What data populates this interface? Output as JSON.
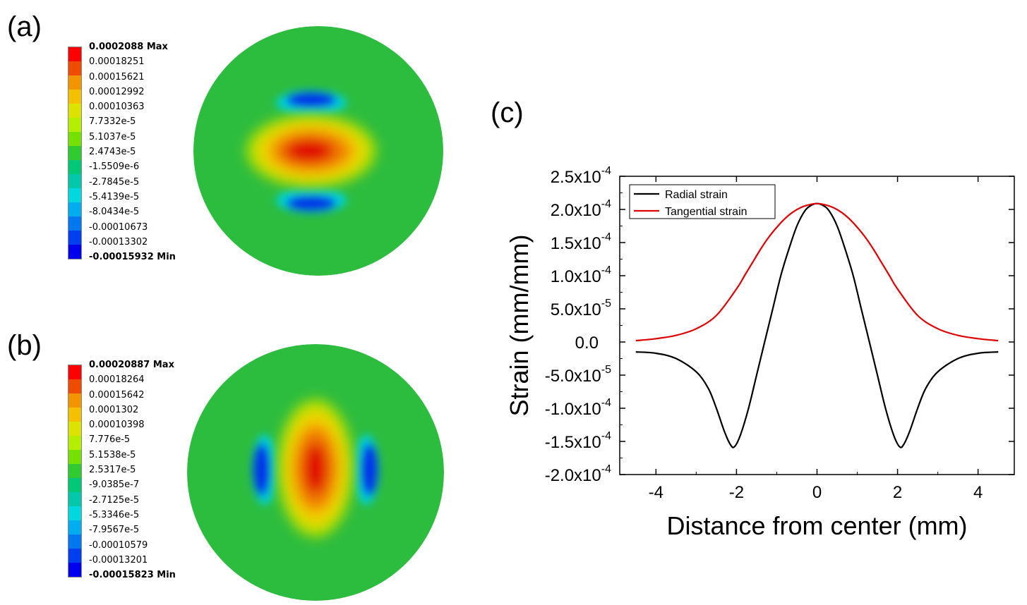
{
  "panels": {
    "a": {
      "label": "(a)",
      "legend": [
        "0.0002088 Max",
        "0.00018251",
        "0.00015621",
        "0.00012992",
        "0.00010363",
        "7.7332e-5",
        "5.1037e-5",
        "2.4743e-5",
        "-1.5509e-6",
        "-2.7845e-5",
        "-5.4139e-5",
        "-8.0434e-5",
        "-0.00010673",
        "-0.00013302",
        "-0.00015932 Min"
      ]
    },
    "b": {
      "label": "(b)",
      "legend": [
        "0.00020887 Max",
        "0.00018264",
        "0.00015642",
        "0.0001302",
        "0.00010398",
        "7.776e-5",
        "5.1538e-5",
        "2.5317e-5",
        "-9.0385e-7",
        "-2.7125e-5",
        "-5.3346e-5",
        "-7.9567e-5",
        "-0.00010579",
        "-0.00013201",
        "-0.00015823 Min"
      ]
    },
    "c": {
      "label": "(c)"
    }
  },
  "legend_colors": [
    "#ff0000",
    "#f04c00",
    "#f39500",
    "#f5c000",
    "#dce300",
    "#b5ee00",
    "#74e100",
    "#2fcb31",
    "#00c876",
    "#00c8a8",
    "#00d8e0",
    "#00aef0",
    "#0078ef",
    "#003ff0",
    "#0000ee"
  ],
  "chart_data": {
    "type": "line",
    "title": "",
    "xlabel": "Distance from center (mm)",
    "ylabel": "Strain (mm/mm)",
    "xlim": [
      -4.9,
      4.9
    ],
    "ylim": [
      -0.0002,
      0.00025
    ],
    "xticks": [
      -4,
      -2,
      0,
      2,
      4
    ],
    "xtick_labels": [
      "-4",
      "-2",
      "0",
      "2",
      "4"
    ],
    "yticks": [
      0.00025,
      0.0002,
      0.00015,
      0.0001,
      5e-05,
      0,
      -5e-05,
      -0.0001,
      -0.00015,
      -0.0002
    ],
    "ytick_labels": [
      {
        "m": "2.5x10",
        "e": "-4"
      },
      {
        "m": "2.0x10",
        "e": "-4"
      },
      {
        "m": "1.5x10",
        "e": "-4"
      },
      {
        "m": "1.0x10",
        "e": "-4"
      },
      {
        "m": "5.0x10",
        "e": "-5"
      },
      {
        "m": "0.0",
        "e": ""
      },
      {
        "m": "-5.0x10",
        "e": "-5"
      },
      {
        "m": "-1.0x10",
        "e": "-4"
      },
      {
        "m": "-1.5x10",
        "e": "-4"
      },
      {
        "m": "-2.0x10",
        "e": "-4"
      }
    ],
    "legend_position": "top-left",
    "series": [
      {
        "name": "Radial strain",
        "color": "#000000",
        "x": [
          -4.5,
          -4.0,
          -3.5,
          -3.0,
          -2.7,
          -2.5,
          -2.3,
          -2.15,
          -2.05,
          -1.9,
          -1.7,
          -1.5,
          -1.3,
          -1.1,
          -0.9,
          -0.7,
          -0.5,
          -0.3,
          -0.15,
          0,
          0.15,
          0.3,
          0.5,
          0.7,
          0.9,
          1.1,
          1.3,
          1.5,
          1.7,
          1.9,
          2.05,
          2.15,
          2.3,
          2.5,
          2.7,
          3.0,
          3.5,
          4.0,
          4.5
        ],
        "values": [
          -1.5e-05,
          -1.7e-05,
          -2.5e-05,
          -4.5e-05,
          -7e-05,
          -0.0001,
          -0.000135,
          -0.000155,
          -0.000158,
          -0.00014,
          -0.0001,
          -5e-05,
          0.0,
          5e-05,
          0.0001,
          0.00014,
          0.000175,
          0.000198,
          0.000206,
          0.0002088,
          0.000206,
          0.000198,
          0.000175,
          0.00014,
          0.0001,
          5e-05,
          0.0,
          -5e-05,
          -0.0001,
          -0.00014,
          -0.000158,
          -0.000155,
          -0.000135,
          -0.0001,
          -7e-05,
          -4.5e-05,
          -2.5e-05,
          -1.7e-05,
          -1.5e-05
        ]
      },
      {
        "name": "Tangential strain",
        "color": "#e00000",
        "x": [
          -4.5,
          -4.0,
          -3.5,
          -3.0,
          -2.5,
          -2.0,
          -1.8,
          -1.6,
          -1.4,
          -1.2,
          -1.0,
          -0.8,
          -0.6,
          -0.4,
          -0.2,
          0,
          0.2,
          0.4,
          0.6,
          0.8,
          1.0,
          1.2,
          1.4,
          1.6,
          1.8,
          2.0,
          2.5,
          3.0,
          3.5,
          4.0,
          4.5
        ],
        "values": [
          2e-06,
          5e-06,
          1e-05,
          2e-05,
          4e-05,
          8e-05,
          0.0001,
          0.00012,
          0.00014,
          0.000158,
          0.000173,
          0.000186,
          0.000196,
          0.000203,
          0.000207,
          0.0002088,
          0.000207,
          0.000203,
          0.000196,
          0.000186,
          0.000173,
          0.000158,
          0.00014,
          0.00012,
          0.0001,
          8e-05,
          4e-05,
          2e-05,
          1e-05,
          5e-06,
          2e-06
        ]
      }
    ]
  }
}
